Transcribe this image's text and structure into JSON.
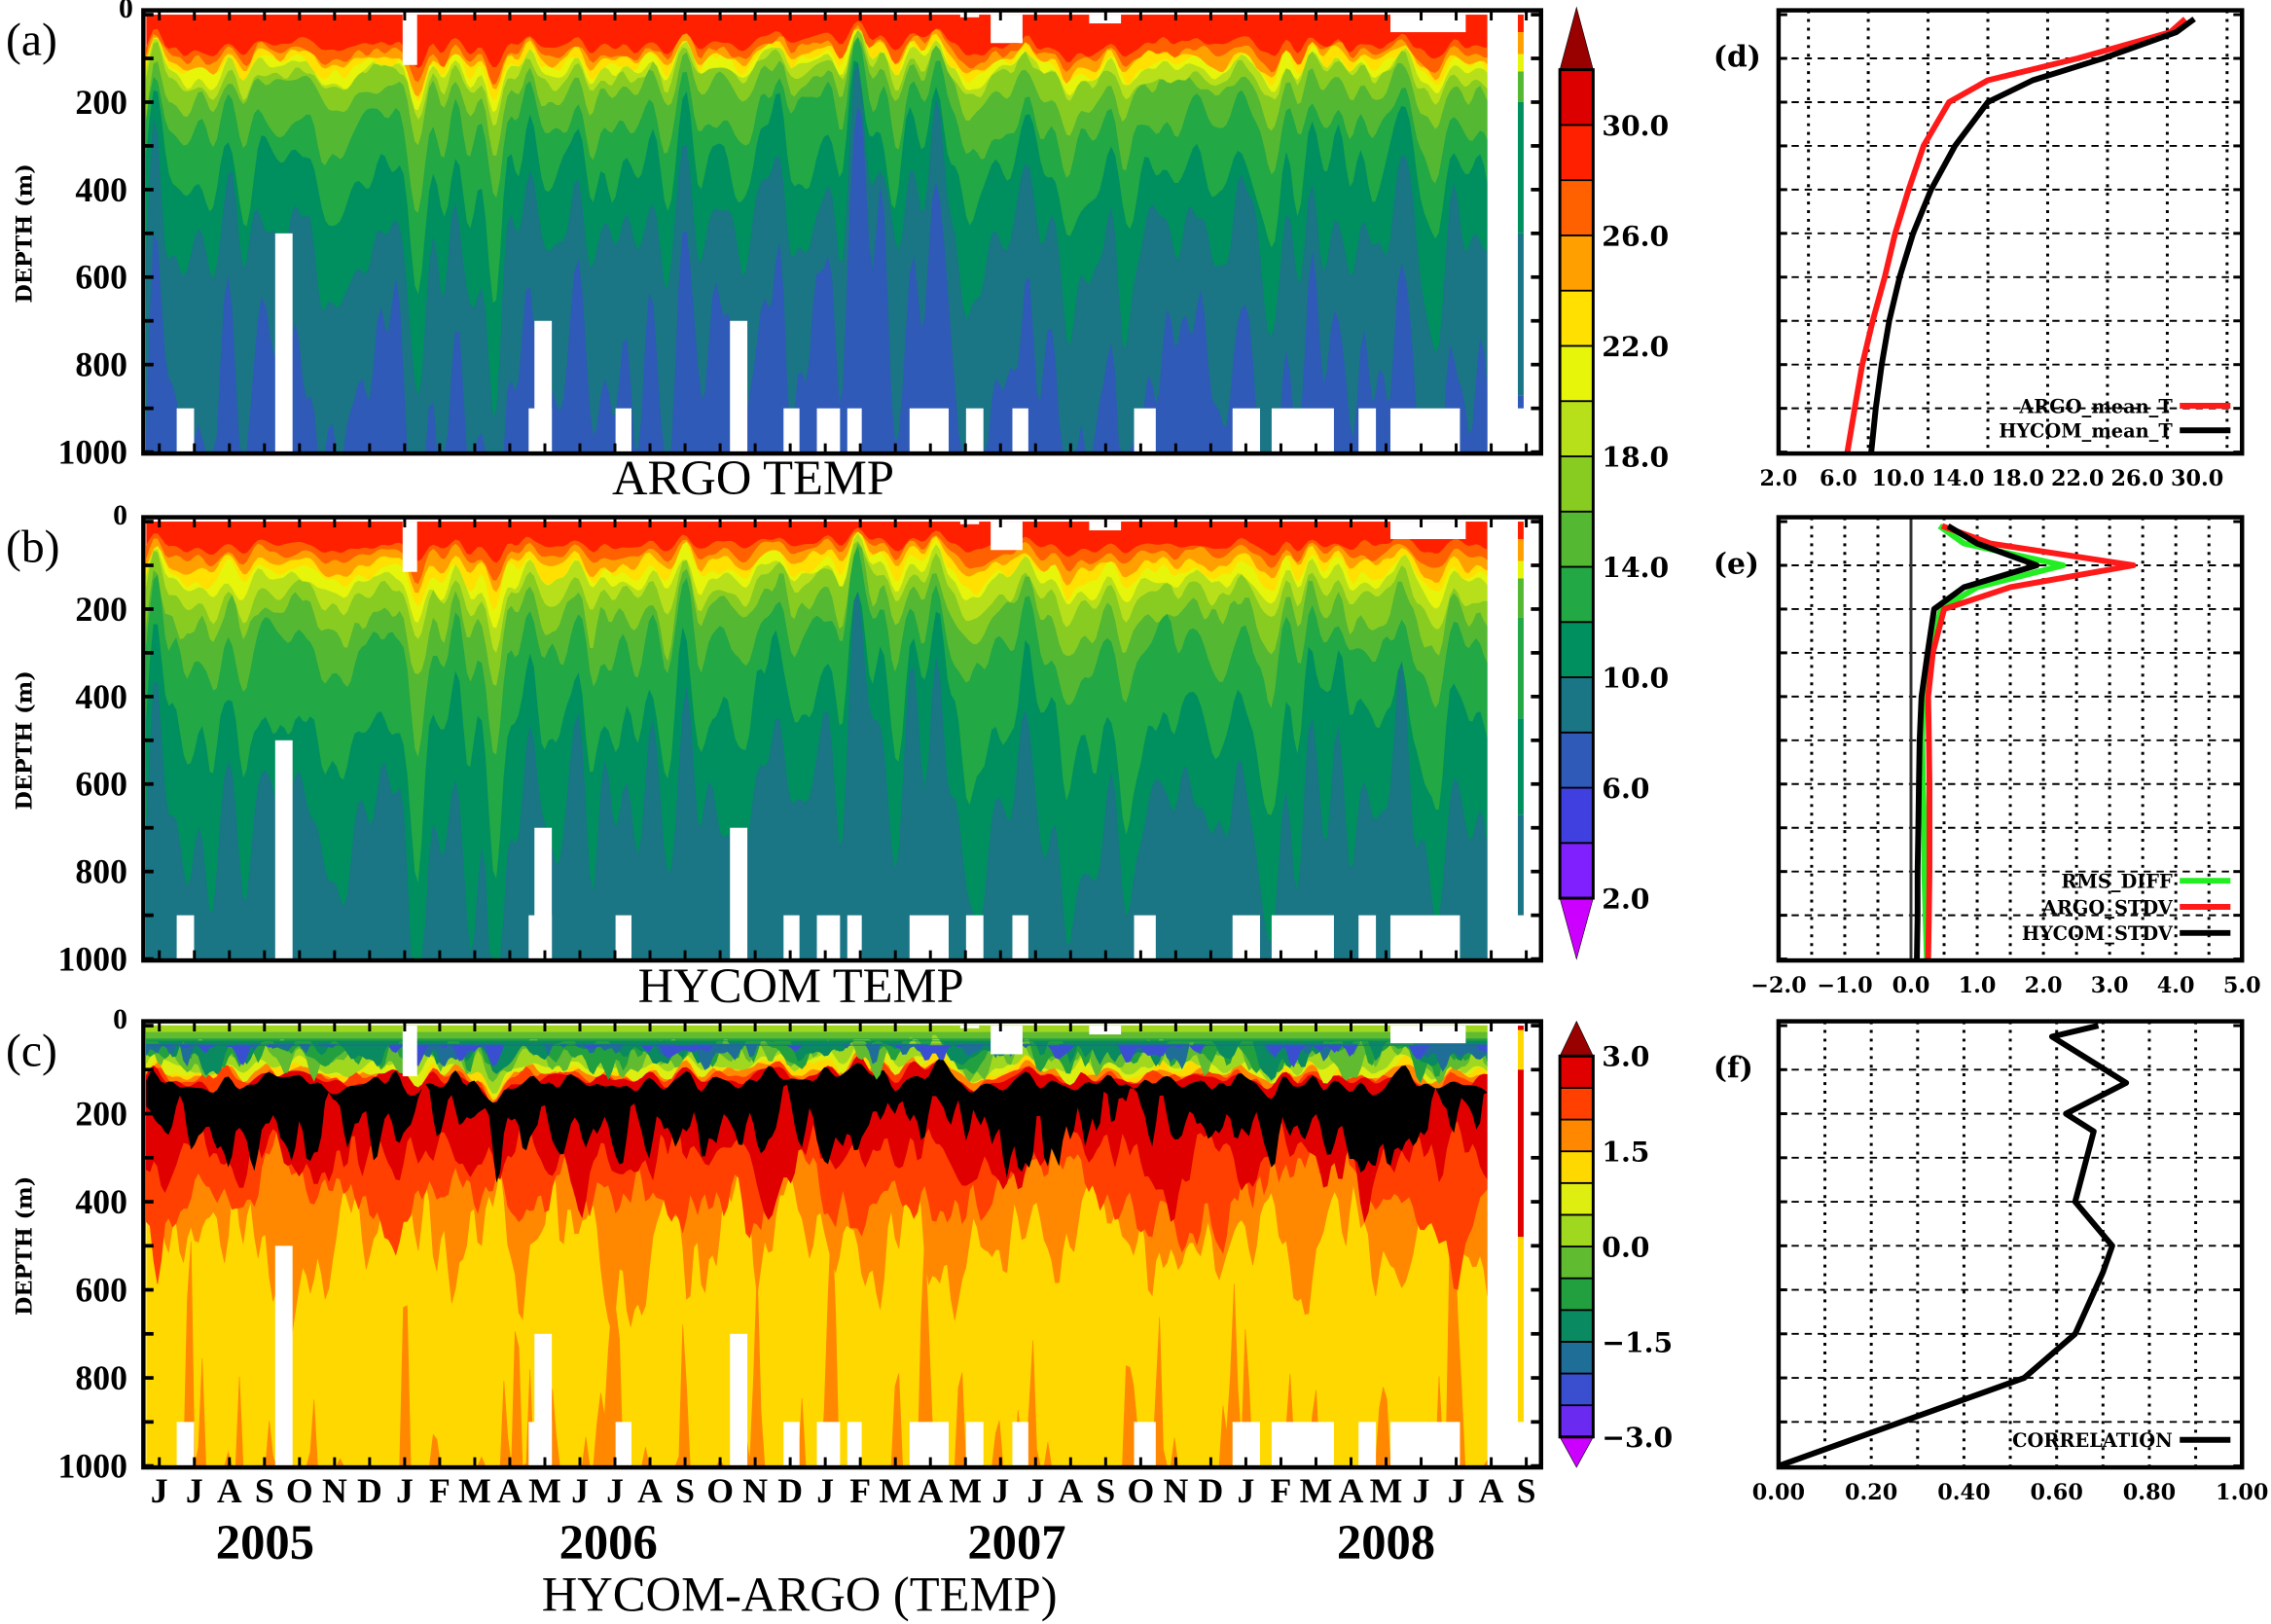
{
  "chart_data": [
    {
      "id": "a",
      "type": "heatmap",
      "panel_label": "(a)",
      "title": "ARGO TEMP",
      "ylabel": "DEPTH (m)",
      "ylim": [
        1000,
        0
      ],
      "yticks": [
        "0",
        "200",
        "400",
        "600",
        "800",
        "1000"
      ],
      "isotherm_mean_depths_m": {
        "28": 70,
        "26": 88,
        "24": 100,
        "22": 112,
        "20": 124,
        "18": 140,
        "16": 175,
        "14": 250,
        "12": 360,
        "10": 510,
        "8": 830
      },
      "colorbar": "temp"
    },
    {
      "id": "b",
      "type": "heatmap",
      "panel_label": "(b)",
      "title": "HYCOM TEMP",
      "ylabel": "DEPTH (m)",
      "ylim": [
        1000,
        0
      ],
      "yticks": [
        "0",
        "200",
        "400",
        "600",
        "800",
        "1000"
      ],
      "isotherm_mean_depths_m": {
        "28": 55,
        "26": 75,
        "24": 95,
        "22": 115,
        "20": 135,
        "18": 165,
        "16": 215,
        "14": 290,
        "12": 460,
        "10": 670
      },
      "colorbar": "temp"
    },
    {
      "id": "c",
      "type": "heatmap",
      "panel_label": "(c)",
      "title": "HYCOM-ARGO (TEMP)",
      "ylabel": "DEPTH (m)",
      "ylim": [
        1000,
        0
      ],
      "yticks": [
        "0",
        "200",
        "400",
        "600",
        "800",
        "1000"
      ],
      "xticks": [
        "J",
        "J",
        "A",
        "S",
        "O",
        "N",
        "D",
        "J",
        "F",
        "M",
        "A",
        "M",
        "J",
        "J",
        "A",
        "S",
        "O",
        "N",
        "D",
        "J",
        "F",
        "M",
        "A",
        "M",
        "J",
        "J",
        "A",
        "S",
        "O",
        "N",
        "D",
        "J",
        "F",
        "M",
        "A",
        "M",
        "J",
        "J",
        "A",
        "S"
      ],
      "years": [
        "2005",
        "2006",
        "2007",
        "2008"
      ],
      "colorbar": "diff"
    },
    {
      "id": "d",
      "type": "line",
      "panel_label": "(d)",
      "xlim": [
        2,
        33
      ],
      "ylim": [
        1000,
        0
      ],
      "grid": true,
      "legend": "bottom-right",
      "xticks": [
        "2.0",
        "6.0",
        "10.0",
        "14.0",
        "18.0",
        "22.0",
        "26.0",
        "30.0"
      ],
      "depths": [
        10,
        40,
        100,
        150,
        200,
        300,
        400,
        500,
        600,
        700,
        800,
        900,
        1000
      ],
      "series": [
        {
          "name": "ARGO_mean_T",
          "color": "#ff1a1a",
          "values": [
            29.2,
            28.2,
            22.0,
            16.0,
            13.4,
            11.7,
            10.7,
            9.8,
            9.1,
            8.3,
            7.6,
            7.1,
            6.6
          ]
        },
        {
          "name": "HYCOM_mean_T",
          "color": "#000000",
          "values": [
            29.8,
            28.6,
            23.7,
            19.0,
            16.0,
            13.8,
            12.2,
            11.0,
            10.1,
            9.4,
            8.9,
            8.5,
            8.2
          ]
        }
      ]
    },
    {
      "id": "e",
      "type": "line",
      "panel_label": "(e)",
      "xlim": [
        -2,
        5
      ],
      "ylim": [
        1000,
        0
      ],
      "grid": true,
      "legend": "bottom-right",
      "xticks": [
        "−2.0",
        "−1.0",
        "0.0",
        "1.0",
        "2.0",
        "3.0",
        "4.0",
        "5.0"
      ],
      "depths": [
        10,
        50,
        100,
        150,
        200,
        300,
        400,
        500,
        600,
        700,
        800,
        900,
        1000
      ],
      "series": [
        {
          "name": "RMS_DIFF",
          "color": "#22ee22",
          "values": [
            0.43,
            0.8,
            2.3,
            1.0,
            0.45,
            0.3,
            0.18,
            0.17,
            0.18,
            0.2,
            0.2,
            0.22,
            0.24
          ]
        },
        {
          "name": "ARGO_STDV",
          "color": "#ff1a1a",
          "values": [
            0.47,
            1.2,
            3.36,
            1.5,
            0.5,
            0.33,
            0.26,
            0.27,
            0.28,
            0.28,
            0.28,
            0.27,
            0.26
          ]
        },
        {
          "name": "HYCOM_STDV",
          "color": "#000000",
          "values": [
            0.56,
            1.0,
            1.9,
            0.8,
            0.35,
            0.25,
            0.16,
            0.13,
            0.12,
            0.11,
            0.1,
            0.1,
            0.09
          ]
        }
      ]
    },
    {
      "id": "f",
      "type": "line",
      "panel_label": "(f)",
      "xlim": [
        0,
        1
      ],
      "ylim": [
        1000,
        0
      ],
      "grid": true,
      "legend": "bottom-right",
      "xticks": [
        "0.00",
        "0.20",
        "0.40",
        "0.60",
        "0.80",
        "1.00"
      ],
      "depths": [
        0,
        25,
        130,
        200,
        240,
        400,
        500,
        560,
        700,
        800,
        1000
      ],
      "series": [
        {
          "name": "CORRELATION",
          "color": "#000000",
          "values": [
            0.69,
            0.59,
            0.75,
            0.62,
            0.68,
            0.64,
            0.72,
            0.7,
            0.64,
            0.53,
            0.0
          ]
        }
      ]
    }
  ],
  "colorbars": {
    "temp": {
      "labels": [
        "30.0",
        "26.0",
        "22.0",
        "18.0",
        "14.0",
        "10.0",
        "6.0",
        "2.0"
      ],
      "label_values": [
        30,
        26,
        22,
        18,
        14,
        10,
        6,
        2
      ],
      "range": [
        2,
        32
      ],
      "step": 2,
      "under_color": "#cc00ff",
      "over_color": "#990000",
      "colors": [
        "#8020ff",
        "#4040e0",
        "#2f5ab8",
        "#1a7585",
        "#009060",
        "#22a844",
        "#55b833",
        "#88cc22",
        "#b8e01a",
        "#e6f50a",
        "#ffe000",
        "#ffa000",
        "#ff6000",
        "#ff2000",
        "#dd0000"
      ]
    },
    "diff": {
      "labels": [
        "3.0",
        "1.5",
        "0.0",
        "−1.5",
        "−3.0"
      ],
      "label_values": [
        3,
        1.5,
        0,
        -1.5,
        -3
      ],
      "range": [
        -3,
        3
      ],
      "step": 0.5,
      "under_color": "#cc00ff",
      "over_color": "#990000",
      "colors": [
        "#6a2af0",
        "#3a4fd0",
        "#1f6e98",
        "#0a8a60",
        "#22a040",
        "#60bb30",
        "#a0d820",
        "#ddee10",
        "#ffd800",
        "#ff8800",
        "#ff4000",
        "#e00000"
      ]
    }
  }
}
